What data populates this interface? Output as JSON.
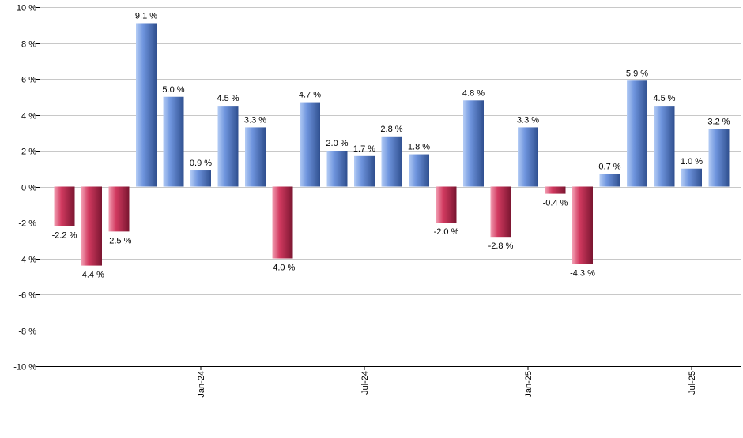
{
  "chart_data": {
    "type": "bar",
    "title": "",
    "xlabel": "",
    "ylabel": "",
    "ylim": [
      -10,
      10
    ],
    "y_ticks": [
      10,
      8,
      6,
      4,
      2,
      0,
      -2,
      -4,
      -6,
      -8,
      -10
    ],
    "y_tick_suffix": " %",
    "grid": true,
    "value_suffix": " %",
    "values": [
      -2.2,
      -4.4,
      -2.5,
      9.1,
      5.0,
      0.9,
      4.5,
      3.3,
      -4.0,
      4.7,
      2.0,
      1.7,
      2.8,
      1.8,
      -2.0,
      4.8,
      -2.8,
      3.3,
      -0.4,
      -4.3,
      0.7,
      5.9,
      4.5,
      1.0,
      3.2
    ],
    "value_labels": [
      "-2.2 %",
      "-4.4 %",
      "-2.5 %",
      "9.1 %",
      "5.0 %",
      "0.9 %",
      "4.5 %",
      "3.3 %",
      "-4.0 %",
      "4.7 %",
      "2.0 %",
      "1.7 %",
      "2.8 %",
      "1.8 %",
      "-2.0 %",
      "4.8 %",
      "-2.8 %",
      "3.3 %",
      "-0.4 %",
      "-4.3 %",
      "0.7 %",
      "5.9 %",
      "4.5 %",
      "1.0 %",
      "3.2 %"
    ],
    "x_tick_labels": [
      {
        "label": "Jan-24",
        "bar_index": 5
      },
      {
        "label": "Jul-24",
        "bar_index": 11
      },
      {
        "label": "Jan-25",
        "bar_index": 17
      },
      {
        "label": "Jul-25",
        "bar_index": 23
      }
    ],
    "colors": {
      "positive_light": "#b4ccf5",
      "positive_mid": "#6f95de",
      "positive_dark": "#2f4f8f",
      "negative_light": "#f3a0b4",
      "negative_mid": "#d23a60",
      "negative_dark": "#7a1530",
      "grid": "#c8c8c8",
      "axis": "#000000"
    }
  }
}
